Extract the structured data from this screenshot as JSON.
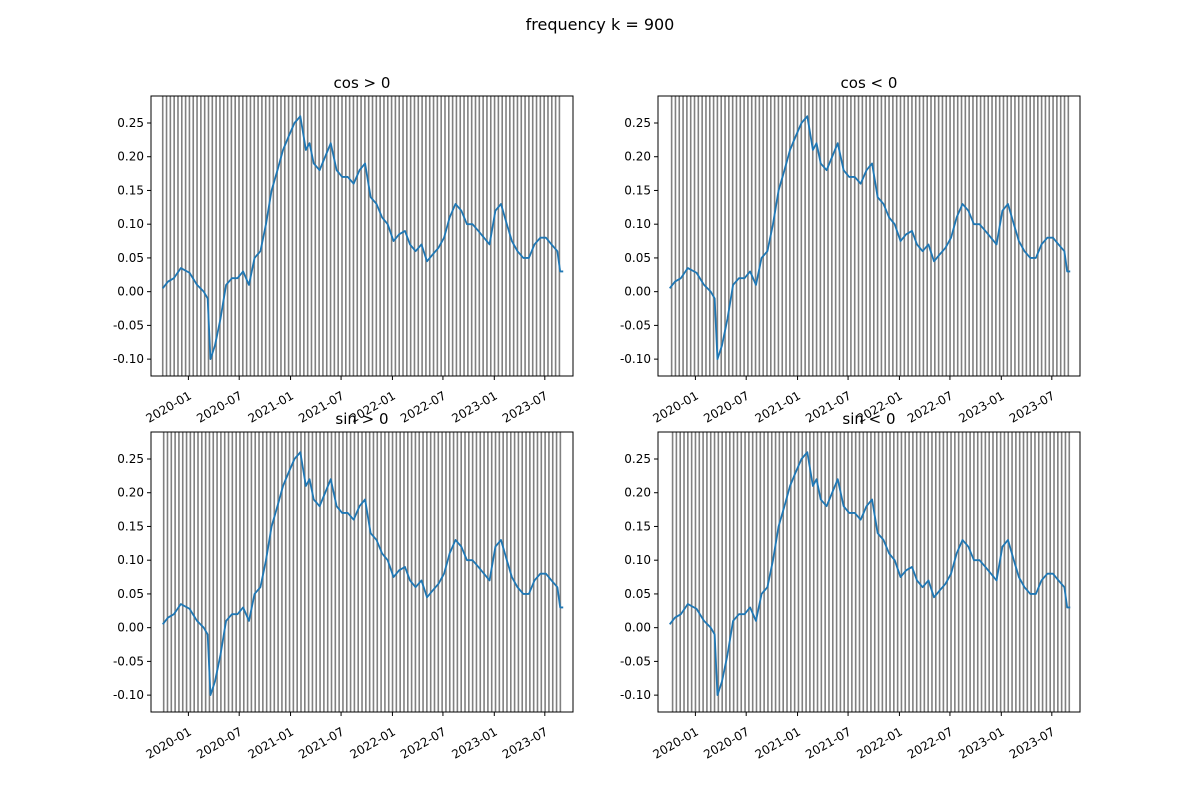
{
  "figure": {
    "title": "frequency k = 900"
  },
  "colors": {
    "series": "#1f77b4",
    "vlines": "#808080",
    "axes": "#000000"
  },
  "shared": {
    "x_start": "2019-10-01",
    "x_end": "2023-09-05",
    "x_range": [
      "2019-08-20",
      "2023-10-10"
    ],
    "ylim": [
      -0.125,
      0.29
    ],
    "y_ticks": [
      -0.1,
      -0.05,
      0.0,
      0.05,
      0.1,
      0.15,
      0.2,
      0.25
    ],
    "y_tick_labels": [
      "-0.10",
      "-0.05",
      "0.00",
      "0.05",
      "0.10",
      "0.15",
      "0.20",
      "0.25"
    ],
    "x_ticks": [
      "2020-01-01",
      "2020-07-01",
      "2021-01-01",
      "2021-07-01",
      "2022-01-01",
      "2022-07-01",
      "2023-01-01",
      "2023-07-01"
    ],
    "x_tick_labels": [
      "2020-01",
      "2020-07",
      "2021-01",
      "2021-07",
      "2022-01",
      "2022-07",
      "2023-01",
      "2023-07"
    ],
    "vline_count": 105
  },
  "chart_data": [
    {
      "type": "line",
      "title": "cos > 0",
      "series": [
        {
          "x": [
            "2019-10-01",
            "2019-10-20",
            "2019-11-10",
            "2019-12-05",
            "2020-01-05",
            "2020-02-01",
            "2020-02-25",
            "2020-03-10",
            "2020-03-20",
            "2020-04-05",
            "2020-04-25",
            "2020-05-15",
            "2020-06-05",
            "2020-06-25",
            "2020-07-15",
            "2020-08-05",
            "2020-08-25",
            "2020-09-15",
            "2020-10-05",
            "2020-10-25",
            "2020-11-15",
            "2020-12-05",
            "2020-12-25",
            "2021-01-15",
            "2021-02-05",
            "2021-02-25",
            "2021-03-10",
            "2021-03-25",
            "2021-04-15",
            "2021-05-05",
            "2021-05-25",
            "2021-06-15",
            "2021-07-05",
            "2021-07-25",
            "2021-08-15",
            "2021-09-05",
            "2021-09-25",
            "2021-10-15",
            "2021-11-05",
            "2021-11-25",
            "2021-12-15",
            "2022-01-05",
            "2022-01-25",
            "2022-02-15",
            "2022-03-05",
            "2022-03-25",
            "2022-04-15",
            "2022-05-05",
            "2022-05-25",
            "2022-06-15",
            "2022-07-05",
            "2022-07-25",
            "2022-08-15",
            "2022-09-05",
            "2022-09-25",
            "2022-10-15",
            "2022-11-05",
            "2022-11-25",
            "2022-12-15",
            "2023-01-05",
            "2023-01-25",
            "2023-02-15",
            "2023-03-05",
            "2023-03-25",
            "2023-04-15",
            "2023-05-05",
            "2023-05-25",
            "2023-06-15",
            "2023-07-05",
            "2023-07-25",
            "2023-08-15",
            "2023-08-25",
            "2023-09-05"
          ],
          "values": [
            0.005,
            0.015,
            0.02,
            0.035,
            0.028,
            0.01,
            0.0,
            -0.01,
            -0.1,
            -0.08,
            -0.04,
            0.01,
            0.02,
            0.02,
            0.03,
            0.01,
            0.05,
            0.06,
            0.1,
            0.15,
            0.18,
            0.21,
            0.23,
            0.25,
            0.26,
            0.21,
            0.22,
            0.19,
            0.18,
            0.2,
            0.22,
            0.18,
            0.17,
            0.17,
            0.16,
            0.18,
            0.19,
            0.14,
            0.13,
            0.11,
            0.1,
            0.075,
            0.085,
            0.09,
            0.07,
            0.06,
            0.07,
            0.045,
            0.055,
            0.065,
            0.08,
            0.11,
            0.13,
            0.12,
            0.1,
            0.1,
            0.09,
            0.08,
            0.07,
            0.12,
            0.13,
            0.1,
            0.075,
            0.06,
            0.05,
            0.05,
            0.07,
            0.08,
            0.08,
            0.07,
            0.06,
            0.03,
            0.03
          ]
        }
      ]
    },
    {
      "type": "line",
      "title": "cos < 0",
      "series": [
        {
          "x": [
            "2019-10-01",
            "2019-10-20",
            "2019-11-10",
            "2019-12-05",
            "2020-01-05",
            "2020-02-01",
            "2020-02-25",
            "2020-03-10",
            "2020-03-20",
            "2020-04-05",
            "2020-04-25",
            "2020-05-15",
            "2020-06-05",
            "2020-06-25",
            "2020-07-15",
            "2020-08-05",
            "2020-08-25",
            "2020-09-15",
            "2020-10-05",
            "2020-10-25",
            "2020-11-15",
            "2020-12-05",
            "2020-12-25",
            "2021-01-15",
            "2021-02-05",
            "2021-02-25",
            "2021-03-10",
            "2021-03-25",
            "2021-04-15",
            "2021-05-05",
            "2021-05-25",
            "2021-06-15",
            "2021-07-05",
            "2021-07-25",
            "2021-08-15",
            "2021-09-05",
            "2021-09-25",
            "2021-10-15",
            "2021-11-05",
            "2021-11-25",
            "2021-12-15",
            "2022-01-05",
            "2022-01-25",
            "2022-02-15",
            "2022-03-05",
            "2022-03-25",
            "2022-04-15",
            "2022-05-05",
            "2022-05-25",
            "2022-06-15",
            "2022-07-05",
            "2022-07-25",
            "2022-08-15",
            "2022-09-05",
            "2022-09-25",
            "2022-10-15",
            "2022-11-05",
            "2022-11-25",
            "2022-12-15",
            "2023-01-05",
            "2023-01-25",
            "2023-02-15",
            "2023-03-05",
            "2023-03-25",
            "2023-04-15",
            "2023-05-05",
            "2023-05-25",
            "2023-06-15",
            "2023-07-05",
            "2023-07-25",
            "2023-08-15",
            "2023-08-25",
            "2023-09-05"
          ],
          "values": [
            0.005,
            0.015,
            0.02,
            0.035,
            0.028,
            0.01,
            0.0,
            -0.01,
            -0.1,
            -0.08,
            -0.04,
            0.01,
            0.02,
            0.02,
            0.03,
            0.01,
            0.05,
            0.06,
            0.1,
            0.15,
            0.18,
            0.21,
            0.23,
            0.25,
            0.26,
            0.21,
            0.22,
            0.19,
            0.18,
            0.2,
            0.22,
            0.18,
            0.17,
            0.17,
            0.16,
            0.18,
            0.19,
            0.14,
            0.13,
            0.11,
            0.1,
            0.075,
            0.085,
            0.09,
            0.07,
            0.06,
            0.07,
            0.045,
            0.055,
            0.065,
            0.08,
            0.11,
            0.13,
            0.12,
            0.1,
            0.1,
            0.09,
            0.08,
            0.07,
            0.12,
            0.13,
            0.1,
            0.075,
            0.06,
            0.05,
            0.05,
            0.07,
            0.08,
            0.08,
            0.07,
            0.06,
            0.03,
            0.03
          ]
        }
      ]
    },
    {
      "type": "line",
      "title": "sin > 0",
      "series": [
        {
          "x": [
            "2019-10-01",
            "2019-10-20",
            "2019-11-10",
            "2019-12-05",
            "2020-01-05",
            "2020-02-01",
            "2020-02-25",
            "2020-03-10",
            "2020-03-20",
            "2020-04-05",
            "2020-04-25",
            "2020-05-15",
            "2020-06-05",
            "2020-06-25",
            "2020-07-15",
            "2020-08-05",
            "2020-08-25",
            "2020-09-15",
            "2020-10-05",
            "2020-10-25",
            "2020-11-15",
            "2020-12-05",
            "2020-12-25",
            "2021-01-15",
            "2021-02-05",
            "2021-02-25",
            "2021-03-10",
            "2021-03-25",
            "2021-04-15",
            "2021-05-05",
            "2021-05-25",
            "2021-06-15",
            "2021-07-05",
            "2021-07-25",
            "2021-08-15",
            "2021-09-05",
            "2021-09-25",
            "2021-10-15",
            "2021-11-05",
            "2021-11-25",
            "2021-12-15",
            "2022-01-05",
            "2022-01-25",
            "2022-02-15",
            "2022-03-05",
            "2022-03-25",
            "2022-04-15",
            "2022-05-05",
            "2022-05-25",
            "2022-06-15",
            "2022-07-05",
            "2022-07-25",
            "2022-08-15",
            "2022-09-05",
            "2022-09-25",
            "2022-10-15",
            "2022-11-05",
            "2022-11-25",
            "2022-12-15",
            "2023-01-05",
            "2023-01-25",
            "2023-02-15",
            "2023-03-05",
            "2023-03-25",
            "2023-04-15",
            "2023-05-05",
            "2023-05-25",
            "2023-06-15",
            "2023-07-05",
            "2023-07-25",
            "2023-08-15",
            "2023-08-25",
            "2023-09-05"
          ],
          "values": [
            0.005,
            0.015,
            0.02,
            0.035,
            0.028,
            0.01,
            0.0,
            -0.01,
            -0.1,
            -0.08,
            -0.04,
            0.01,
            0.02,
            0.02,
            0.03,
            0.01,
            0.05,
            0.06,
            0.1,
            0.15,
            0.18,
            0.21,
            0.23,
            0.25,
            0.26,
            0.21,
            0.22,
            0.19,
            0.18,
            0.2,
            0.22,
            0.18,
            0.17,
            0.17,
            0.16,
            0.18,
            0.19,
            0.14,
            0.13,
            0.11,
            0.1,
            0.075,
            0.085,
            0.09,
            0.07,
            0.06,
            0.07,
            0.045,
            0.055,
            0.065,
            0.08,
            0.11,
            0.13,
            0.12,
            0.1,
            0.1,
            0.09,
            0.08,
            0.07,
            0.12,
            0.13,
            0.1,
            0.075,
            0.06,
            0.05,
            0.05,
            0.07,
            0.08,
            0.08,
            0.07,
            0.06,
            0.03,
            0.03
          ]
        }
      ]
    },
    {
      "type": "line",
      "title": "sin < 0",
      "series": [
        {
          "x": [
            "2019-10-01",
            "2019-10-20",
            "2019-11-10",
            "2019-12-05",
            "2020-01-05",
            "2020-02-01",
            "2020-02-25",
            "2020-03-10",
            "2020-03-20",
            "2020-04-05",
            "2020-04-25",
            "2020-05-15",
            "2020-06-05",
            "2020-06-25",
            "2020-07-15",
            "2020-08-05",
            "2020-08-25",
            "2020-09-15",
            "2020-10-05",
            "2020-10-25",
            "2020-11-15",
            "2020-12-05",
            "2020-12-25",
            "2021-01-15",
            "2021-02-05",
            "2021-02-25",
            "2021-03-10",
            "2021-03-25",
            "2021-04-15",
            "2021-05-05",
            "2021-05-25",
            "2021-06-15",
            "2021-07-05",
            "2021-07-25",
            "2021-08-15",
            "2021-09-05",
            "2021-09-25",
            "2021-10-15",
            "2021-11-05",
            "2021-11-25",
            "2021-12-15",
            "2022-01-05",
            "2022-01-25",
            "2022-02-15",
            "2022-03-05",
            "2022-03-25",
            "2022-04-15",
            "2022-05-05",
            "2022-05-25",
            "2022-06-15",
            "2022-07-05",
            "2022-07-25",
            "2022-08-15",
            "2022-09-05",
            "2022-09-25",
            "2022-10-15",
            "2022-11-05",
            "2022-11-25",
            "2022-12-15",
            "2023-01-05",
            "2023-01-25",
            "2023-02-15",
            "2023-03-05",
            "2023-03-25",
            "2023-04-15",
            "2023-05-05",
            "2023-05-25",
            "2023-06-15",
            "2023-07-05",
            "2023-07-25",
            "2023-08-15",
            "2023-08-25",
            "2023-09-05"
          ],
          "values": [
            0.005,
            0.015,
            0.02,
            0.035,
            0.028,
            0.01,
            0.0,
            -0.01,
            -0.1,
            -0.08,
            -0.04,
            0.01,
            0.02,
            0.02,
            0.03,
            0.01,
            0.05,
            0.06,
            0.1,
            0.15,
            0.18,
            0.21,
            0.23,
            0.25,
            0.26,
            0.21,
            0.22,
            0.19,
            0.18,
            0.2,
            0.22,
            0.18,
            0.17,
            0.17,
            0.16,
            0.18,
            0.19,
            0.14,
            0.13,
            0.11,
            0.1,
            0.075,
            0.085,
            0.09,
            0.07,
            0.06,
            0.07,
            0.045,
            0.055,
            0.065,
            0.08,
            0.11,
            0.13,
            0.12,
            0.1,
            0.1,
            0.09,
            0.08,
            0.07,
            0.12,
            0.13,
            0.1,
            0.075,
            0.06,
            0.05,
            0.05,
            0.07,
            0.08,
            0.08,
            0.07,
            0.06,
            0.03,
            0.03
          ]
        }
      ]
    }
  ]
}
